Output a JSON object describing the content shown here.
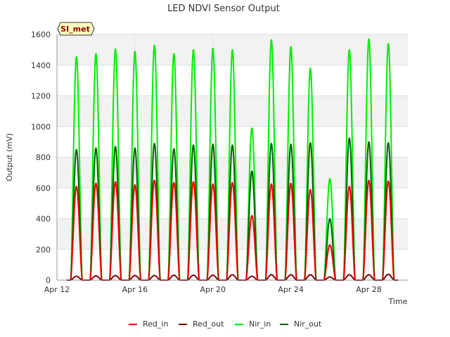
{
  "chart_data": {
    "type": "line",
    "title": "LED NDVI Sensor Output",
    "xlabel": "Time",
    "ylabel": "Output (mV)",
    "ylim": [
      0,
      1600
    ],
    "yticks": [
      0,
      200,
      400,
      600,
      800,
      1000,
      1200,
      1400,
      1600
    ],
    "xlim_days": [
      12,
      30
    ],
    "xticks": [
      {
        "day": 12,
        "label": "Apr 12"
      },
      {
        "day": 16,
        "label": "Apr 16"
      },
      {
        "day": 20,
        "label": "Apr 20"
      },
      {
        "day": 24,
        "label": "Apr 24"
      },
      {
        "day": 28,
        "label": "Apr 28"
      }
    ],
    "badge": "SI_met",
    "grid": true,
    "legend_position": "bottom",
    "series": [
      {
        "name": "Red_in",
        "color": "#ee0000",
        "daily_peaks": [
          610,
          630,
          640,
          620,
          650,
          635,
          640,
          625,
          635,
          420,
          625,
          630,
          590,
          230,
          610,
          650,
          645
        ]
      },
      {
        "name": "Red_out",
        "color": "#800000",
        "daily_peaks": [
          25,
          28,
          30,
          30,
          30,
          32,
          32,
          32,
          35,
          25,
          35,
          35,
          35,
          20,
          35,
          35,
          38
        ]
      },
      {
        "name": "Nir_in",
        "color": "#00ee00",
        "daily_peaks": [
          1455,
          1475,
          1505,
          1490,
          1530,
          1475,
          1500,
          1510,
          1500,
          990,
          1565,
          1520,
          1380,
          660,
          1500,
          1570,
          1540
        ]
      },
      {
        "name": "Nir_out",
        "color": "#006400",
        "daily_peaks": [
          850,
          860,
          870,
          860,
          890,
          855,
          880,
          885,
          880,
          710,
          890,
          885,
          895,
          400,
          925,
          900,
          895
        ]
      }
    ]
  }
}
